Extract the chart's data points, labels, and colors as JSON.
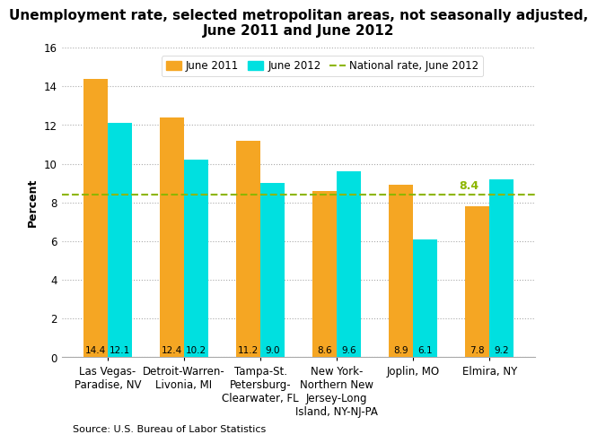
{
  "title": "Unemployment rate, selected metropolitan areas, not seasonally adjusted,\nJune 2011 and June 2012",
  "ylabel": "Percent",
  "source": "Source: U.S. Bureau of Labor Statistics",
  "national_rate": 8.4,
  "national_rate_label": "8.4",
  "categories": [
    "Las Vegas-\nParadise, NV",
    "Detroit-Warren-\nLivonia, MI",
    "Tampa-St.\nPetersburg-\nClearwater, FL",
    "New York-\nNorthern New\nJersey-Long\nIsland, NY-NJ-PA",
    "Joplin, MO",
    "Elmira, NY"
  ],
  "june2011": [
    14.4,
    12.4,
    11.2,
    8.6,
    8.9,
    7.8
  ],
  "june2012": [
    12.1,
    10.2,
    9.0,
    9.6,
    6.1,
    9.2
  ],
  "color_2011": "#F5A623",
  "color_2012": "#00E0E0",
  "color_national": "#8DB600",
  "ylim": [
    0,
    16
  ],
  "yticks": [
    0,
    2,
    4,
    6,
    8,
    10,
    12,
    14,
    16
  ],
  "legend_june2011": "June 2011",
  "legend_june2012": "June 2012",
  "legend_national": "National rate, June 2012",
  "bar_width": 0.32,
  "title_fontsize": 11,
  "label_fontsize": 9,
  "tick_fontsize": 8.5,
  "source_fontsize": 8
}
